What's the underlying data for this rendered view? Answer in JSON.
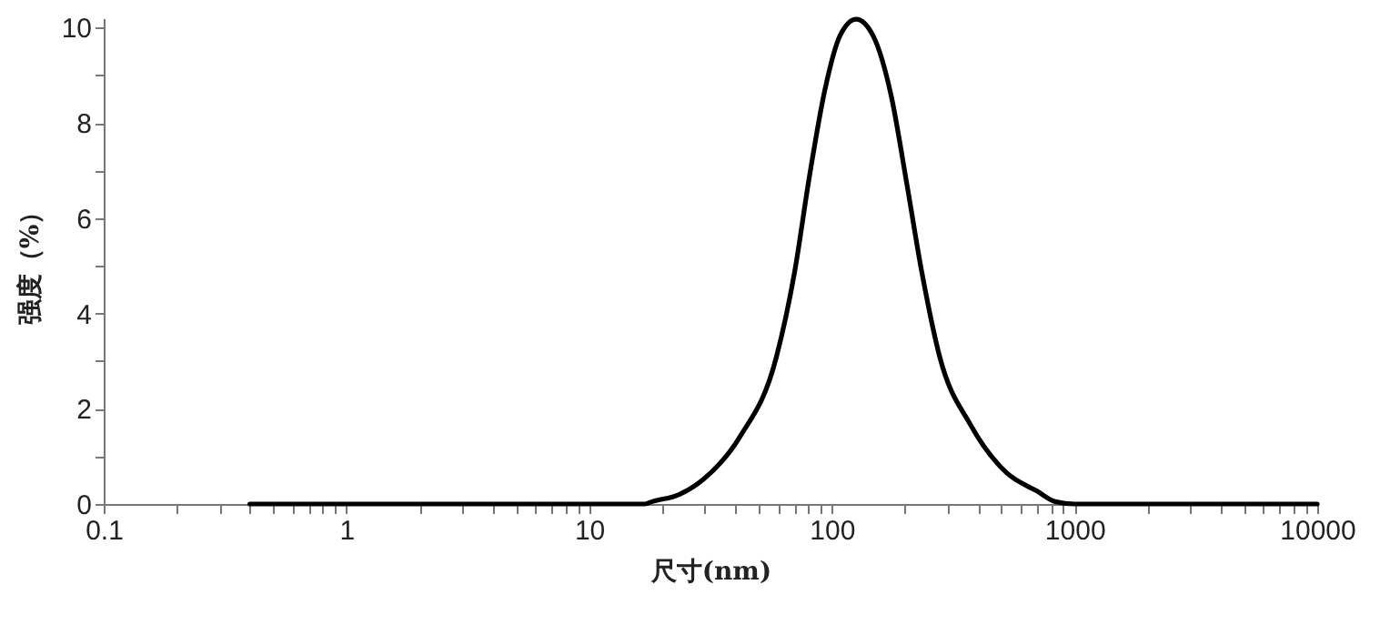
{
  "chart_data": {
    "type": "line",
    "xlabel": "尺寸(nm)",
    "ylabel": "强度（%）",
    "log": "x",
    "grid": false,
    "marker": "none",
    "line_style": "solid",
    "x": [
      0.4,
      1,
      5,
      10,
      17,
      18.2,
      23.5,
      29.6,
      41.8,
      59,
      70.2,
      81,
      93.5,
      108,
      126,
      148,
      176,
      203,
      235,
      279,
      372,
      526,
      701,
      832,
      1000,
      5000,
      10000
    ],
    "series": [
      {
        "color": "#000000",
        "values": [
          0,
          0,
          0,
          0,
          0,
          0.05,
          0.2,
          0.52,
          1.41,
          3.07,
          4.86,
          6.9,
          8.68,
          9.83,
          10.18,
          9.83,
          8.55,
          6.77,
          4.86,
          3.07,
          1.67,
          0.65,
          0.27,
          0.05,
          0,
          0,
          0
        ]
      }
    ],
    "xlim": [
      0.1,
      10000
    ],
    "ylim": [
      0,
      10.2
    ],
    "xticks": [
      0.1,
      {
        "value": 0.2,
        "label": null
      },
      {
        "value": 0.3,
        "label": null
      },
      {
        "value": 0.4,
        "label": null
      },
      {
        "value": 0.5,
        "label": null
      },
      {
        "value": 0.6,
        "label": null
      },
      {
        "value": 0.7,
        "label": null
      },
      {
        "value": 0.8,
        "label": null
      },
      {
        "value": 0.9,
        "label": null
      },
      1,
      {
        "value": 2,
        "label": null
      },
      {
        "value": 3,
        "label": null
      },
      {
        "value": 4,
        "label": null
      },
      {
        "value": 5,
        "label": null
      },
      {
        "value": 6,
        "label": null
      },
      {
        "value": 7,
        "label": null
      },
      {
        "value": 8,
        "label": null
      },
      {
        "value": 9,
        "label": null
      },
      10,
      {
        "value": 20,
        "label": null
      },
      {
        "value": 30,
        "label": null
      },
      {
        "value": 40,
        "label": null
      },
      {
        "value": 50,
        "label": null
      },
      {
        "value": 60,
        "label": null
      },
      {
        "value": 70,
        "label": null
      },
      {
        "value": 80,
        "label": null
      },
      {
        "value": 90,
        "label": null
      },
      100,
      {
        "value": 200,
        "label": null
      },
      {
        "value": 300,
        "label": null
      },
      {
        "value": 400,
        "label": null
      },
      {
        "value": 500,
        "label": null
      },
      {
        "value": 600,
        "label": null
      },
      {
        "value": 700,
        "label": null
      },
      {
        "value": 800,
        "label": null
      },
      {
        "value": 900,
        "label": null
      },
      1000,
      {
        "value": 2000,
        "label": null
      },
      {
        "value": 3000,
        "label": null
      },
      {
        "value": 4000,
        "label": null
      },
      {
        "value": 5000,
        "label": null
      },
      {
        "value": 6000,
        "label": null
      },
      {
        "value": 7000,
        "label": null
      },
      {
        "value": 8000,
        "label": null
      },
      {
        "value": 9000,
        "label": null
      },
      10000
    ],
    "yticks": [
      0,
      {
        "value": 1,
        "label": null
      },
      2,
      {
        "value": 3,
        "label": null
      },
      4,
      {
        "value": 5,
        "label": null
      },
      6,
      {
        "value": 7,
        "label": null
      },
      8,
      {
        "value": 9,
        "label": null
      },
      10
    ]
  }
}
